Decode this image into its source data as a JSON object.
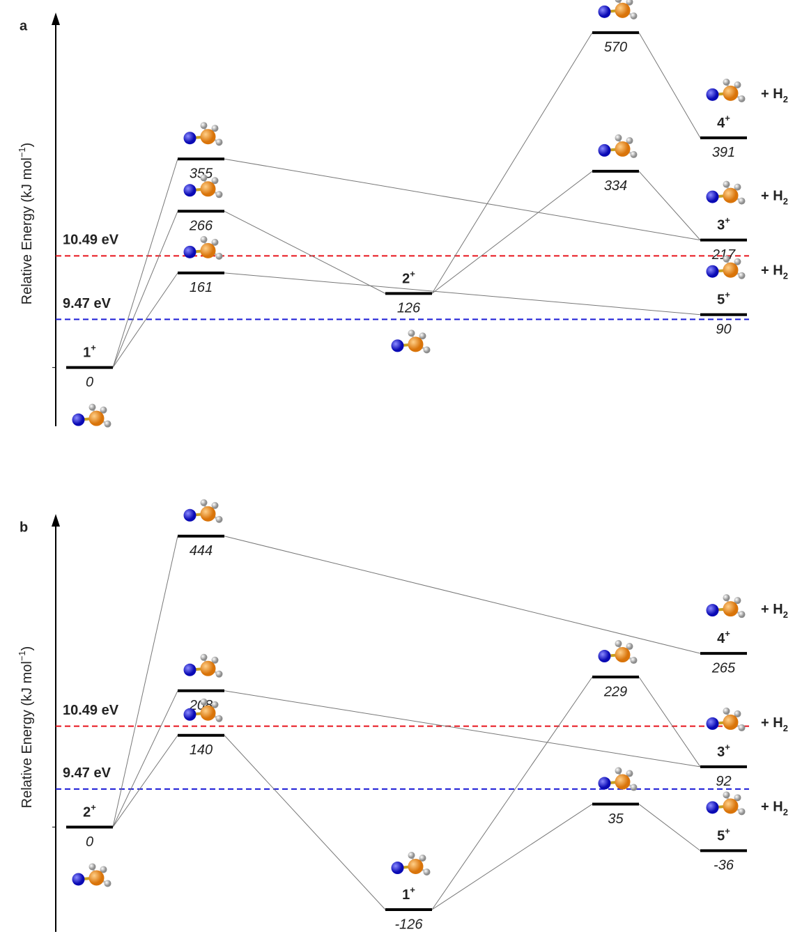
{
  "chart_data": [
    {
      "type": "energy-levels",
      "tag": "a",
      "y_label": {
        "text": "Relative Energy (kJ mol",
        "sup": "−1",
        "tail": ")"
      },
      "ylim": [
        -100,
        590
      ],
      "levels": [
        {
          "stage": 0,
          "value": 0,
          "label": {
            "text": "1",
            "sup": "+"
          }
        },
        {
          "stage": 1,
          "value": 355
        },
        {
          "stage": 1,
          "value": 266
        },
        {
          "stage": 1,
          "value": 161
        },
        {
          "stage": 2,
          "value": 126,
          "label": {
            "text": "2",
            "sup": "+"
          }
        },
        {
          "stage": 3,
          "value": 570
        },
        {
          "stage": 3,
          "value": 334
        },
        {
          "stage": 4,
          "value": 391,
          "label": {
            "text": "4",
            "sup": "+"
          },
          "extra": {
            "text": "+ H",
            "sub": "2"
          }
        },
        {
          "stage": 4,
          "value": 217,
          "label": {
            "text": "3",
            "sup": "+"
          },
          "extra": {
            "text": "+ H",
            "sub": "2"
          }
        },
        {
          "stage": 4,
          "value": 90,
          "label": {
            "text": "5",
            "sup": "+"
          },
          "extra": {
            "text": "+ H",
            "sub": "2"
          }
        }
      ],
      "links": [
        [
          0,
          1
        ],
        [
          0,
          2
        ],
        [
          0,
          3
        ],
        [
          1,
          8
        ],
        [
          2,
          4
        ],
        [
          3,
          9
        ],
        [
          4,
          5
        ],
        [
          4,
          6
        ],
        [
          5,
          7
        ],
        [
          6,
          8
        ]
      ],
      "reference_lines": [
        {
          "label": "10.49 eV",
          "value": 190,
          "color": "#e8141c"
        },
        {
          "label": "9.47 eV",
          "value": 82,
          "color": "#1a1ad6"
        }
      ]
    },
    {
      "type": "energy-levels",
      "tag": "b",
      "y_label": {
        "text": "Relative Energy (kJ mol",
        "sup": "−1",
        "tail": ")"
      },
      "ylim": [
        -160,
        465
      ],
      "levels": [
        {
          "stage": 0,
          "value": 0,
          "label": {
            "text": "2",
            "sup": "+"
          }
        },
        {
          "stage": 1,
          "value": 444
        },
        {
          "stage": 1,
          "value": 208
        },
        {
          "stage": 1,
          "value": 140
        },
        {
          "stage": 2,
          "value": -126,
          "label": {
            "text": "1",
            "sup": "+"
          }
        },
        {
          "stage": 3,
          "value": 229
        },
        {
          "stage": 3,
          "value": 35
        },
        {
          "stage": 4,
          "value": 265,
          "label": {
            "text": "4",
            "sup": "+"
          },
          "extra": {
            "text": "+ H",
            "sub": "2"
          }
        },
        {
          "stage": 4,
          "value": 92,
          "label": {
            "text": "3",
            "sup": "+"
          },
          "extra": {
            "text": "+ H",
            "sub": "2"
          }
        },
        {
          "stage": 4,
          "value": -36,
          "label": {
            "text": "5",
            "sup": "+"
          },
          "extra": {
            "text": "+ H",
            "sub": "2"
          }
        }
      ],
      "links": [
        [
          0,
          1
        ],
        [
          0,
          2
        ],
        [
          0,
          3
        ],
        [
          1,
          7
        ],
        [
          2,
          8
        ],
        [
          3,
          4
        ],
        [
          4,
          5
        ],
        [
          4,
          6
        ],
        [
          5,
          8
        ],
        [
          6,
          9
        ]
      ],
      "reference_lines": [
        {
          "label": "10.49 eV",
          "value": 154,
          "color": "#e8141c"
        },
        {
          "label": "9.47 eV",
          "value": 58,
          "color": "#1a1ad6"
        }
      ]
    }
  ]
}
